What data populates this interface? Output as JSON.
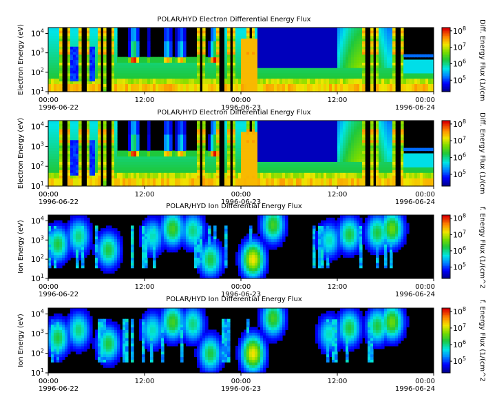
{
  "colorbar_ticks": [
    "10^8",
    "10^7",
    "10^6",
    "10^5"
  ],
  "colors": {
    "low": "#00008c",
    "mid_low": "#0044ff",
    "cyan": "#00e5e5",
    "green": "#22cc22",
    "yellow": "#f2e400",
    "orange": "#ff8c00",
    "red": "#e80000",
    "background": "#000000"
  },
  "chart_data": [
    {
      "type": "heatmap",
      "title": "POLAR/HYD  Electron Differential Energy Flux",
      "ylabel": "Electron Energy (eV)",
      "colorbar_label": "Diff. Energy Flux (1/(cm",
      "yscale": "log",
      "ylim": [
        10,
        20000
      ],
      "y_ticks": [
        "10^1",
        "10^2",
        "10^3",
        "10^4"
      ],
      "x_ticks": [
        "00:00",
        "12:00",
        "00:00",
        "12:00",
        "00:00"
      ],
      "date_labels": [
        "1996-06-22",
        "1996-06-23",
        "1996-06-24"
      ],
      "xlim": [
        "1996-06-22 00:00",
        "1996-06-24 00:00"
      ],
      "colorscale_log": [
        4.3,
        8.2
      ],
      "kind": "electron"
    },
    {
      "type": "heatmap",
      "title": "POLAR/HYD  Electron Differential Energy Flux",
      "ylabel": "Electron Energy (eV)",
      "colorbar_label": "Diff. Energy Flux (1/(cm",
      "yscale": "log",
      "ylim": [
        10,
        20000
      ],
      "y_ticks": [
        "10^1",
        "10^2",
        "10^3",
        "10^4"
      ],
      "x_ticks": [
        "00:00",
        "12:00",
        "00:00",
        "12:00",
        "00:00"
      ],
      "date_labels": [
        "1996-06-22",
        "1996-06-23",
        "1996-06-24"
      ],
      "xlim": [
        "1996-06-22 00:00",
        "1996-06-24 00:00"
      ],
      "colorscale_log": [
        4.3,
        8.2
      ],
      "kind": "electron"
    },
    {
      "type": "heatmap",
      "title": "POLAR/HYD  Ion Differential Energy Flux",
      "ylabel": "Ion Energy (eV)",
      "colorbar_label": "f. Energy Flux (1/(cm^2",
      "yscale": "log",
      "ylim": [
        10,
        20000
      ],
      "y_ticks": [
        "10^1",
        "10^2",
        "10^3",
        "10^4"
      ],
      "x_ticks": [
        "00:00",
        "12:00",
        "00:00",
        "12:00",
        "00:00"
      ],
      "date_labels": [
        "1996-06-22",
        "1996-06-23",
        "1996-06-24"
      ],
      "xlim": [
        "1996-06-22 00:00",
        "1996-06-24 00:00"
      ],
      "colorscale_log": [
        4.3,
        8.2
      ],
      "kind": "ion"
    },
    {
      "type": "heatmap",
      "title": "POLAR/HYD  Ion Differential Energy Flux",
      "ylabel": "Ion Energy (eV)",
      "colorbar_label": "f. Energy Flux (1/(cm^2",
      "yscale": "log",
      "ylim": [
        10,
        20000
      ],
      "y_ticks": [
        "10^1",
        "10^2",
        "10^3",
        "10^4"
      ],
      "x_ticks": [
        "00:00",
        "12:00",
        "00:00",
        "12:00",
        "00:00"
      ],
      "date_labels": [
        "1996-06-22",
        "1996-06-23",
        "1996-06-24"
      ],
      "xlim": [
        "1996-06-22 00:00",
        "1996-06-24 00:00"
      ],
      "colorscale_log": [
        4.3,
        8.2
      ],
      "kind": "ion"
    }
  ]
}
